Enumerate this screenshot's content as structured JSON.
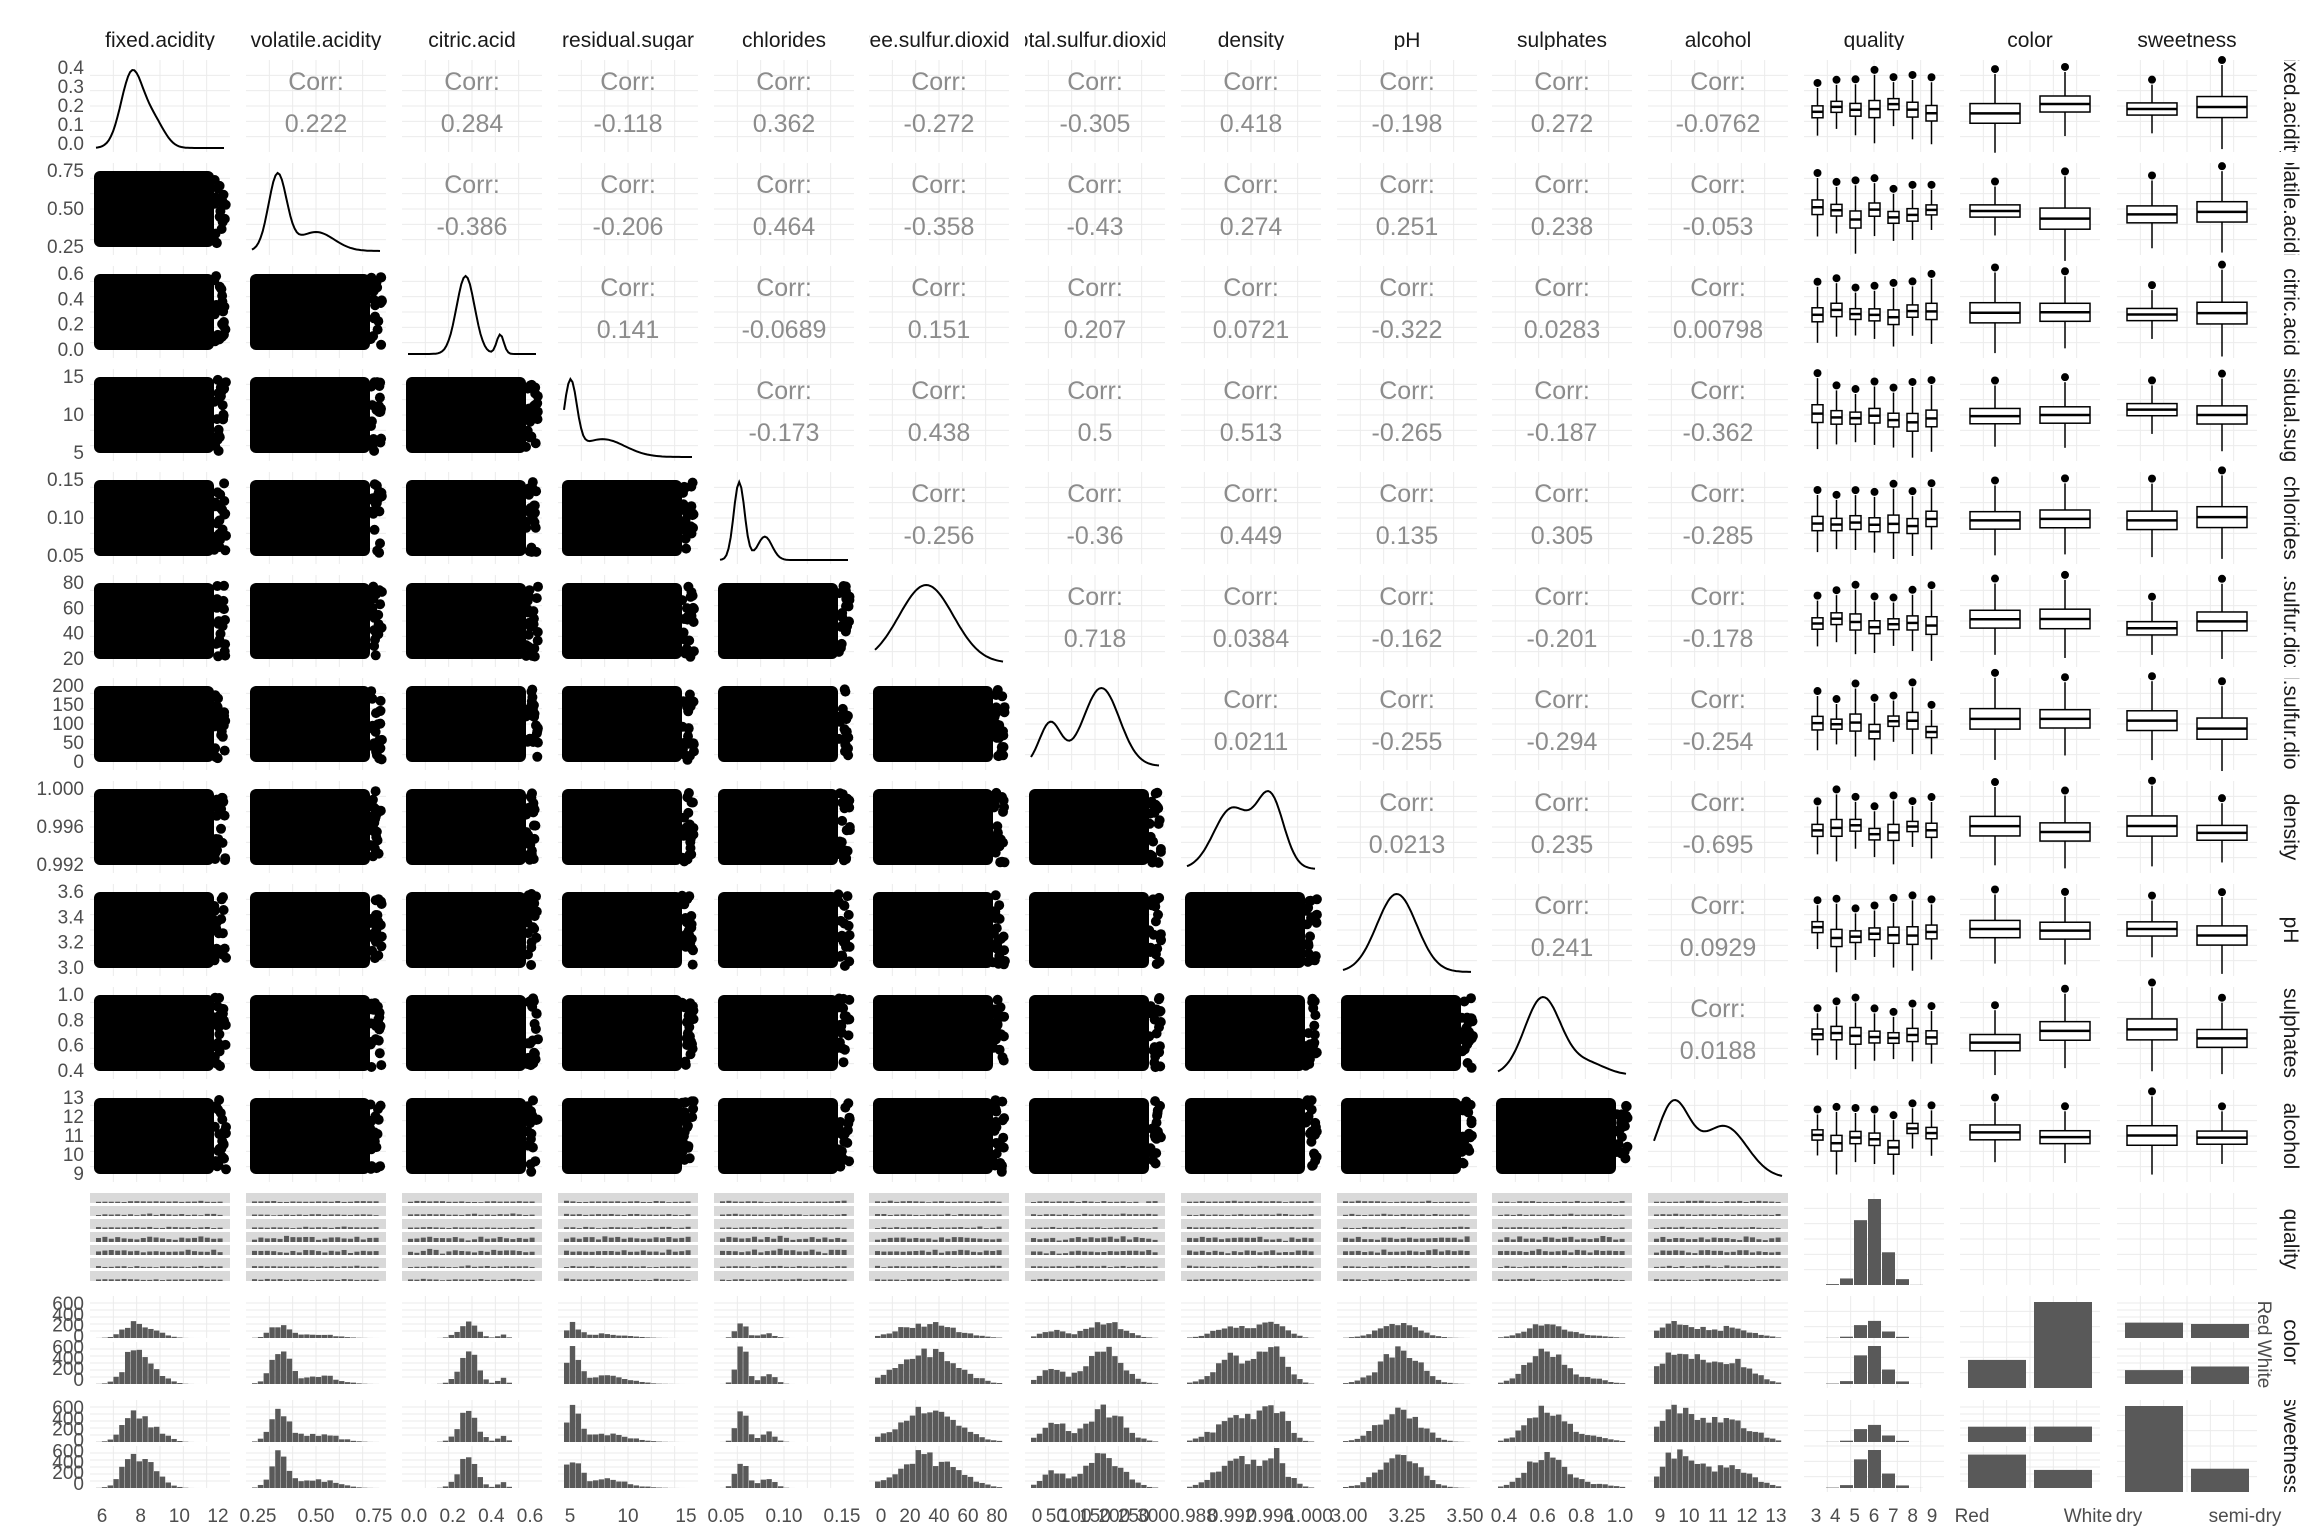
{
  "chart_data": {
    "type": "pairs-matrix",
    "variables": [
      "fixed.acidity",
      "volatile.acidity",
      "citric.acid",
      "residual.sugar",
      "chlorides",
      "free.sulfur.dioxide",
      "total.sulfur.dioxide",
      "density",
      "pH",
      "sulphates",
      "alcohol",
      "quality",
      "color",
      "sweetness"
    ],
    "column_headers": [
      "fixed.acidity",
      "volatile.acidity",
      "citric.acid",
      "residual.sugar",
      "chlorides",
      "free.sulfur.dioxide",
      "total.sulfur.dioxide",
      "density",
      "pH",
      "sulphates",
      "alcohol",
      "quality",
      "color",
      "sweetness"
    ],
    "row_headers": [
      "fixed.acidity",
      "volatile.acidity",
      "citric.acid",
      "residual.sugar",
      "chlorides",
      "free.sulfur.dioxide",
      "total.sulfur.dioxide",
      "density",
      "pH",
      "sulphates",
      "alcohol",
      "quality",
      "color",
      "sweetness"
    ],
    "corr_label": "Corr:",
    "correlations": [
      {
        "row": 0,
        "col": 1,
        "label": "0.222"
      },
      {
        "row": 0,
        "col": 2,
        "label": "0.284"
      },
      {
        "row": 0,
        "col": 3,
        "label": "-0.118"
      },
      {
        "row": 0,
        "col": 4,
        "label": "0.362"
      },
      {
        "row": 0,
        "col": 5,
        "label": "-0.272"
      },
      {
        "row": 0,
        "col": 6,
        "label": "-0.305"
      },
      {
        "row": 0,
        "col": 7,
        "label": "0.418"
      },
      {
        "row": 0,
        "col": 8,
        "label": "-0.198"
      },
      {
        "row": 0,
        "col": 9,
        "label": "0.272"
      },
      {
        "row": 0,
        "col": 10,
        "label": "-0.0762"
      },
      {
        "row": 1,
        "col": 2,
        "label": "-0.386"
      },
      {
        "row": 1,
        "col": 3,
        "label": "-0.206"
      },
      {
        "row": 1,
        "col": 4,
        "label": "0.464"
      },
      {
        "row": 1,
        "col": 5,
        "label": "-0.358"
      },
      {
        "row": 1,
        "col": 6,
        "label": "-0.43"
      },
      {
        "row": 1,
        "col": 7,
        "label": "0.274"
      },
      {
        "row": 1,
        "col": 8,
        "label": "0.251"
      },
      {
        "row": 1,
        "col": 9,
        "label": "0.238"
      },
      {
        "row": 1,
        "col": 10,
        "label": "-0.053"
      },
      {
        "row": 2,
        "col": 3,
        "label": "0.141"
      },
      {
        "row": 2,
        "col": 4,
        "label": "-0.0689"
      },
      {
        "row": 2,
        "col": 5,
        "label": "0.151"
      },
      {
        "row": 2,
        "col": 6,
        "label": "0.207"
      },
      {
        "row": 2,
        "col": 7,
        "label": "0.0721"
      },
      {
        "row": 2,
        "col": 8,
        "label": "-0.322"
      },
      {
        "row": 2,
        "col": 9,
        "label": "0.0283"
      },
      {
        "row": 2,
        "col": 10,
        "label": "0.00798"
      },
      {
        "row": 3,
        "col": 4,
        "label": "-0.173"
      },
      {
        "row": 3,
        "col": 5,
        "label": "0.438"
      },
      {
        "row": 3,
        "col": 6,
        "label": "0.5"
      },
      {
        "row": 3,
        "col": 7,
        "label": "0.513"
      },
      {
        "row": 3,
        "col": 8,
        "label": "-0.265"
      },
      {
        "row": 3,
        "col": 9,
        "label": "-0.187"
      },
      {
        "row": 3,
        "col": 10,
        "label": "-0.362"
      },
      {
        "row": 4,
        "col": 5,
        "label": "-0.256"
      },
      {
        "row": 4,
        "col": 6,
        "label": "-0.36"
      },
      {
        "row": 4,
        "col": 7,
        "label": "0.449"
      },
      {
        "row": 4,
        "col": 8,
        "label": "0.135"
      },
      {
        "row": 4,
        "col": 9,
        "label": "0.305"
      },
      {
        "row": 4,
        "col": 10,
        "label": "-0.285"
      },
      {
        "row": 5,
        "col": 6,
        "label": "0.718"
      },
      {
        "row": 5,
        "col": 7,
        "label": "0.0384"
      },
      {
        "row": 5,
        "col": 8,
        "label": "-0.162"
      },
      {
        "row": 5,
        "col": 9,
        "label": "-0.201"
      },
      {
        "row": 5,
        "col": 10,
        "label": "-0.178"
      },
      {
        "row": 6,
        "col": 7,
        "label": "0.0211"
      },
      {
        "row": 6,
        "col": 8,
        "label": "-0.255"
      },
      {
        "row": 6,
        "col": 9,
        "label": "-0.294"
      },
      {
        "row": 6,
        "col": 10,
        "label": "-0.254"
      },
      {
        "row": 7,
        "col": 8,
        "label": "0.0213"
      },
      {
        "row": 7,
        "col": 9,
        "label": "0.235"
      },
      {
        "row": 7,
        "col": 10,
        "label": "-0.695"
      },
      {
        "row": 8,
        "col": 9,
        "label": "0.241"
      },
      {
        "row": 8,
        "col": 10,
        "label": "0.0929"
      },
      {
        "row": 9,
        "col": 10,
        "label": "0.0188"
      }
    ],
    "y_tick_labels": [
      [
        "0.4",
        "0.3",
        "0.2",
        "0.1",
        "0.0"
      ],
      [
        "0.75",
        "0.50",
        "0.25"
      ],
      [
        "0.6",
        "0.4",
        "0.2",
        "0.0"
      ],
      [
        "15",
        "10",
        "5"
      ],
      [
        "0.15",
        "0.10",
        "0.05"
      ],
      [
        "80",
        "60",
        "40",
        "20"
      ],
      [
        "200",
        "150",
        "100",
        "50",
        "0"
      ],
      [
        "1.000",
        "0.996",
        "0.992"
      ],
      [
        "3.6",
        "3.4",
        "3.2",
        "3.0"
      ],
      [
        "1.0",
        "0.8",
        "0.6",
        "0.4"
      ],
      [
        "13",
        "12",
        "11",
        "10",
        "9"
      ],
      [],
      [
        "600",
        "400",
        "200",
        "0",
        "600",
        "400",
        "200",
        "0"
      ],
      [
        "600",
        "400",
        "200",
        "0",
        "600",
        "400",
        "200",
        "0"
      ]
    ],
    "x_tick_labels": [
      [
        "6",
        "8",
        "10",
        "12"
      ],
      [
        "0.25",
        "0.50",
        "0.75"
      ],
      [
        "0.0",
        "0.2",
        "0.4",
        "0.6"
      ],
      [
        "5",
        "10",
        "15"
      ],
      [
        "0.05",
        "0.10",
        "0.15"
      ],
      [
        "0",
        "20",
        "40",
        "60",
        "80"
      ],
      [
        "0",
        "50",
        "100",
        "150",
        "200",
        "250",
        "300"
      ],
      [
        "0.988",
        "0.992",
        "0.996",
        "1.000"
      ],
      [
        "3.00",
        "3.25",
        "3.50"
      ],
      [
        "0.4",
        "0.6",
        "0.8",
        "1.0"
      ],
      [
        "9",
        "10",
        "11",
        "12",
        "13"
      ],
      [
        "3",
        "4",
        "5",
        "6",
        "7",
        "8",
        "9"
      ],
      [
        "Red",
        "White"
      ],
      [
        "dry",
        "semi-dry"
      ]
    ],
    "facet_strip_labels": [
      "Red",
      "White"
    ],
    "quality_levels": [
      "3",
      "4",
      "5",
      "6",
      "7",
      "8",
      "9"
    ],
    "color_levels": [
      "Red",
      "White"
    ],
    "sweetness_levels": [
      "dry",
      "semi-dry"
    ],
    "quality_counts": [
      30,
      216,
      2138,
      2836,
      1079,
      193,
      5
    ],
    "color_counts": [
      1599,
      4898
    ],
    "sweetness_counts": [
      5113,
      1384
    ],
    "colors": {
      "ink": "#000000",
      "bar_fill": "#595959",
      "grid": "#ebebeb",
      "strip": "#d9d9d9",
      "corr_text": "#8c8c8c"
    }
  }
}
